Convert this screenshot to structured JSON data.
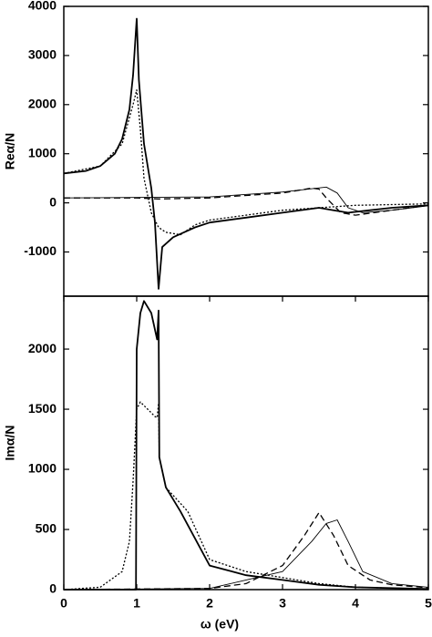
{
  "chart_data": [
    {
      "type": "line",
      "ylabel": "Reα/N",
      "xlim": [
        0,
        5
      ],
      "ylim": [
        -1900,
        4000
      ],
      "yticks": [
        -1000,
        0,
        1000,
        2000,
        3000,
        4000
      ],
      "series": [
        {
          "style": "solid",
          "color": "#000",
          "x": [
            0,
            0.3,
            0.5,
            0.7,
            0.8,
            0.9,
            0.95,
            1.0,
            1.03,
            1.1,
            1.2,
            1.25,
            1.3,
            1.35,
            1.5,
            1.8,
            2.0,
            2.5,
            3.0,
            3.5,
            3.7,
            3.9,
            4.2,
            4.5,
            5
          ],
          "values": [
            600,
            650,
            750,
            1000,
            1300,
            1900,
            2600,
            3750,
            2500,
            1200,
            300,
            -400,
            -1750,
            -900,
            -700,
            -500,
            -400,
            -300,
            -200,
            -100,
            -150,
            -200,
            -150,
            -100,
            -50
          ]
        },
        {
          "style": "dotted",
          "color": "#000",
          "x": [
            0,
            0.5,
            0.8,
            0.95,
            1.0,
            1.05,
            1.1,
            1.2,
            1.3,
            1.4,
            1.6,
            1.8,
            2.0,
            2.5,
            3.0,
            3.5,
            4,
            5
          ],
          "values": [
            600,
            750,
            1200,
            2000,
            2300,
            1500,
            500,
            -200,
            -500,
            -600,
            -650,
            -450,
            -350,
            -250,
            -150,
            -100,
            -50,
            -20
          ]
        },
        {
          "style": "dashed",
          "color": "#000",
          "x": [
            0,
            1,
            1.3,
            2,
            3,
            3.4,
            3.5,
            3.6,
            3.8,
            4,
            4.5,
            5
          ],
          "values": [
            100,
            100,
            80,
            100,
            200,
            300,
            280,
            100,
            -200,
            -250,
            -150,
            -50
          ]
        },
        {
          "style": "thin",
          "color": "#000",
          "x": [
            0,
            2,
            3,
            3.6,
            3.75,
            3.9,
            4.1,
            4.5,
            5
          ],
          "values": [
            100,
            120,
            220,
            320,
            200,
            -100,
            -200,
            -150,
            -60
          ]
        }
      ]
    },
    {
      "type": "line",
      "ylabel": "Imα/N",
      "xlabel": "ω (eV)",
      "xlim": [
        0,
        5
      ],
      "xticks": [
        0,
        1,
        2,
        3,
        4,
        5
      ],
      "ylim": [
        0,
        2440
      ],
      "yticks": [
        0,
        500,
        1000,
        1500,
        2000
      ],
      "series": [
        {
          "style": "solid",
          "color": "#000",
          "x": [
            0,
            0.99,
            1.0,
            1.05,
            1.1,
            1.2,
            1.28,
            1.3,
            1.31,
            1.4,
            1.6,
            2.0,
            2.5,
            3,
            3.5,
            4,
            5
          ],
          "values": [
            0,
            0,
            2000,
            2300,
            2400,
            2300,
            2080,
            2320,
            1100,
            850,
            650,
            200,
            120,
            80,
            40,
            20,
            5
          ]
        },
        {
          "style": "dotted",
          "color": "#000",
          "x": [
            0,
            0.5,
            0.8,
            0.9,
            0.95,
            1.0,
            1.05,
            1.15,
            1.25,
            1.28,
            1.3,
            1.31,
            1.4,
            1.7,
            2.0,
            2.5,
            3,
            3.5,
            4,
            5
          ],
          "values": [
            0,
            20,
            150,
            400,
            900,
            1500,
            1560,
            1500,
            1440,
            1430,
            1550,
            1100,
            850,
            650,
            250,
            150,
            100,
            50,
            20,
            5
          ]
        },
        {
          "style": "dashed",
          "color": "#000",
          "x": [
            0,
            2,
            2.5,
            3,
            3.3,
            3.5,
            3.7,
            3.9,
            4.2,
            4.5,
            5
          ],
          "values": [
            0,
            10,
            50,
            200,
            450,
            640,
            450,
            200,
            80,
            40,
            15
          ]
        },
        {
          "style": "thin",
          "color": "#000",
          "x": [
            0,
            2,
            3,
            3.4,
            3.6,
            3.75,
            3.9,
            4.1,
            4.5,
            5
          ],
          "values": [
            0,
            10,
            150,
            400,
            550,
            580,
            400,
            150,
            50,
            20
          ]
        }
      ]
    }
  ]
}
